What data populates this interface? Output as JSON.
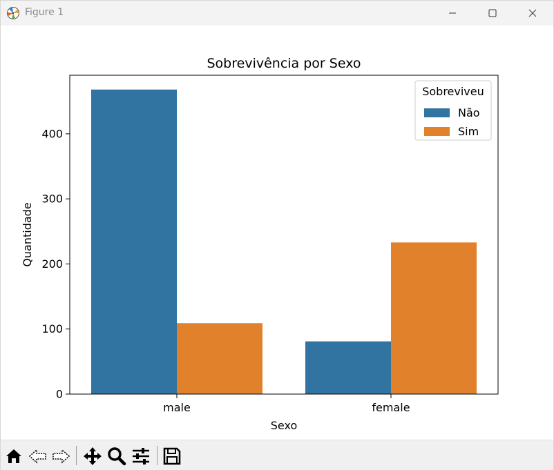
{
  "window": {
    "title": "Figure 1"
  },
  "toolbar": {
    "buttons": [
      "home-icon",
      "back-icon",
      "forward-icon",
      "pan-icon",
      "zoom-icon",
      "configure-subplots-icon",
      "save-icon"
    ]
  },
  "chart_data": {
    "type": "bar",
    "title": "Sobrevivência por Sexo",
    "xlabel": "Sexo",
    "ylabel": "Quantidade",
    "categories": [
      "male",
      "female"
    ],
    "series": [
      {
        "name": "Não",
        "values": [
          468,
          81
        ],
        "color": "#3274a1"
      },
      {
        "name": "Sim",
        "values": [
          109,
          233
        ],
        "color": "#e1812c"
      }
    ],
    "ylim": [
      0,
      490
    ],
    "yticks": [
      0,
      100,
      200,
      300,
      400
    ],
    "legend": {
      "title": "Sobreviveu",
      "placement": "top-right"
    },
    "grid": false
  }
}
